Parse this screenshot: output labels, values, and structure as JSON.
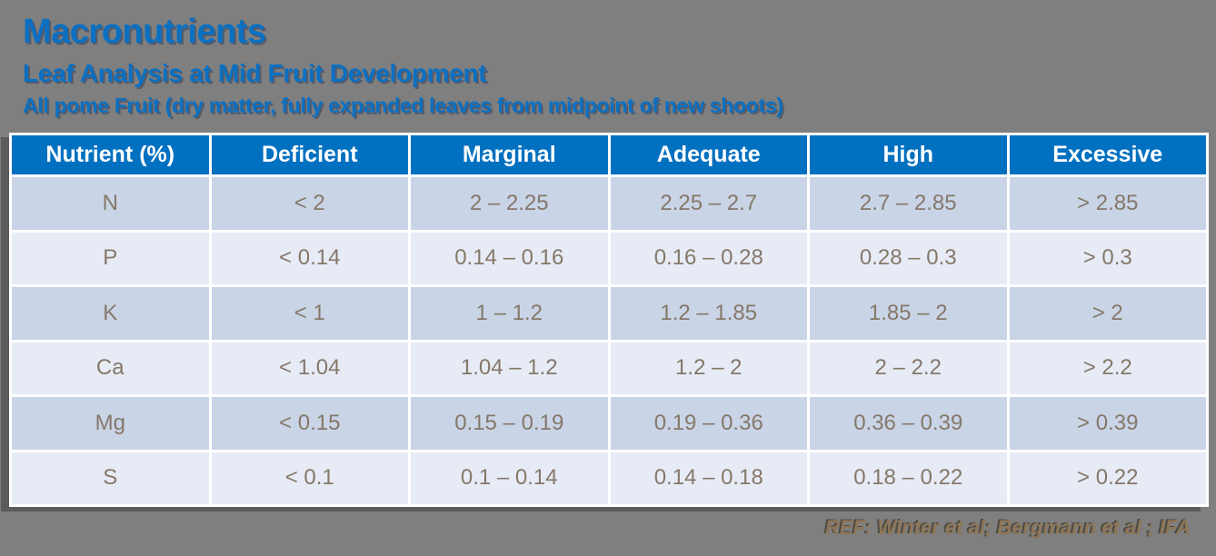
{
  "slide": {
    "title": "Macronutrients",
    "subtitle": "Leaf Analysis at Mid Fruit Development",
    "subtitle2": "All pome Fruit (dry matter, fully expanded leaves from midpoint of new shoots)",
    "reference": "REF: Winter et al; Bergmann et al ; IFA"
  },
  "table": {
    "columns": [
      "Nutrient (%)",
      "Deficient",
      "Marginal",
      "Adequate",
      "High",
      "Excessive"
    ],
    "rows": [
      [
        "N",
        "< 2",
        "2 – 2.25",
        "2.25 – 2.7",
        "2.7 – 2.85",
        "> 2.85"
      ],
      [
        "P",
        "< 0.14",
        "0.14 – 0.16",
        "0.16 – 0.28",
        "0.28 – 0.3",
        "> 0.3"
      ],
      [
        "K",
        "< 1",
        "1 – 1.2",
        "1.2 – 1.85",
        "1.85 – 2",
        "> 2"
      ],
      [
        "Ca",
        "< 1.04",
        "1.04 – 1.2",
        "1.2 – 2",
        "2 – 2.2",
        "> 2.2"
      ],
      [
        "Mg",
        "< 0.15",
        "0.15 – 0.19",
        "0.19 – 0.36",
        "0.36 – 0.39",
        "> 0.39"
      ],
      [
        "S",
        "< 0.1",
        "0.1 – 0.14",
        "0.14 – 0.18",
        "0.18 – 0.22",
        "> 0.22"
      ]
    ]
  },
  "colors": {
    "background": "#7F7F7F",
    "accent_blue": "#0070C0",
    "title_blue": "#0B70C2",
    "header_text": "#FFFFFF",
    "row_dark": "#C9D4E6",
    "row_light": "#E7EBF5",
    "cell_text": "#85786A",
    "reference_text": "#8D7658",
    "table_shadow": "#5B5B5B"
  }
}
